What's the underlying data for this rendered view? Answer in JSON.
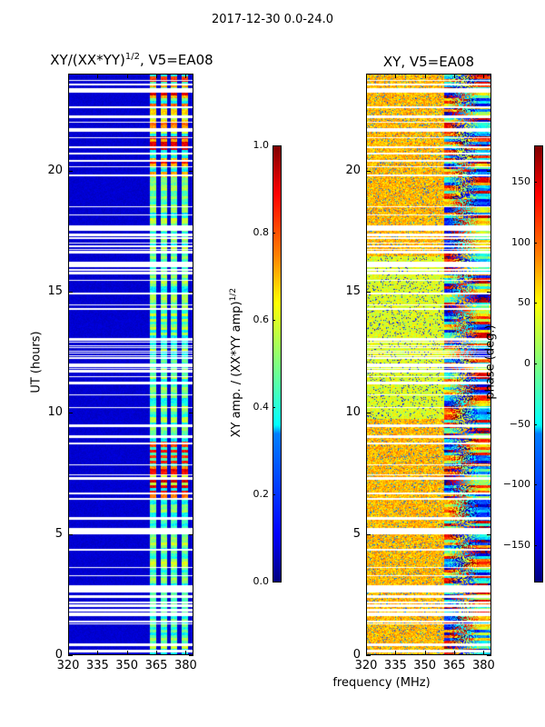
{
  "suptitle": "2017-12-30 0.0-24.0",
  "xlabel": "frequency (MHz)",
  "chart_data": [
    {
      "type": "heatmap",
      "title": "XY/(XX*YY)^1/2, V5=EA08",
      "title_main": "XY/(XX*YY)",
      "title_sup": "1/2",
      "title_tail": ", V5=EA08",
      "xlabel": "frequency (MHz)",
      "ylabel": "UT (hours)",
      "xlim": [
        320,
        384
      ],
      "ylim": [
        0,
        24
      ],
      "xticks": [
        "320",
        "335",
        "350",
        "365",
        "380"
      ],
      "xtick_values": [
        320,
        335,
        350,
        365,
        380
      ],
      "yticks": [
        "0",
        "5",
        "10",
        "15",
        "20"
      ],
      "ytick_values": [
        0,
        5,
        10,
        15,
        20
      ],
      "colorbar": {
        "label_main": "XY amp. / (XX*YY amp)",
        "label_sup": "1/2",
        "range": [
          0.0,
          1.0
        ],
        "ticks": [
          "0.0",
          "0.2",
          "0.4",
          "0.6",
          "0.8",
          "1.0"
        ],
        "tick_values": [
          0.0,
          0.2,
          0.4,
          0.6,
          0.8,
          1.0
        ],
        "colormap": "jet"
      }
    },
    {
      "type": "heatmap",
      "title": "XY, V5=EA08",
      "xlabel": "frequency (MHz)",
      "xlim": [
        320,
        384
      ],
      "ylim": [
        0,
        24
      ],
      "xticks": [
        "320",
        "335",
        "350",
        "365",
        "380"
      ],
      "xtick_values": [
        320,
        335,
        350,
        365,
        380
      ],
      "yticks": [
        "0",
        "5",
        "10",
        "15",
        "20"
      ],
      "ytick_values": [
        0,
        5,
        10,
        15,
        20
      ],
      "colorbar": {
        "label": "phase (deg.)",
        "range": [
          -180,
          180
        ],
        "ticks": [
          "−150",
          "−100",
          "−50",
          "0",
          "50",
          "100",
          "150"
        ],
        "tick_values": [
          -150,
          -100,
          -50,
          0,
          50,
          100,
          150
        ],
        "colormap": "jet"
      }
    }
  ]
}
